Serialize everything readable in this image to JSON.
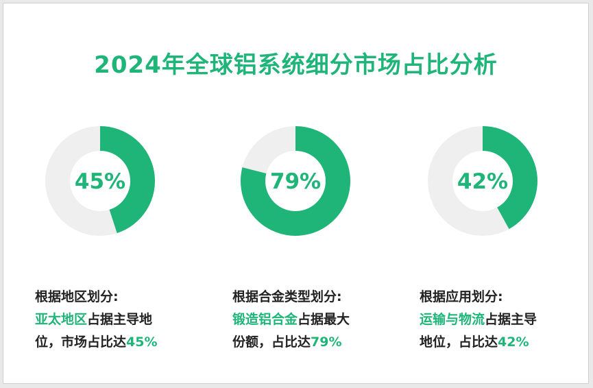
{
  "title": "2024年全球铝系统细分市场占比分析",
  "colors": {
    "accent": "#1fb578",
    "track": "#efefef",
    "text": "#222222"
  },
  "chart_data": [
    {
      "type": "pie",
      "donut": true,
      "values": [
        45,
        55
      ],
      "center_label": "45%",
      "caption": {
        "heading": "根据地区划分:",
        "highlight": "亚太地区",
        "middle": "占据主导地",
        "line3": "位，市场占比达",
        "value": "45%"
      }
    },
    {
      "type": "pie",
      "donut": true,
      "values": [
        79,
        21
      ],
      "center_label": "79%",
      "caption": {
        "heading": "根据合金类型划分:",
        "highlight": "锻造铝合金",
        "middle": "占据最大",
        "line3": "份额，占比达",
        "value": "79%"
      }
    },
    {
      "type": "pie",
      "donut": true,
      "values": [
        42,
        58
      ],
      "center_label": "42%",
      "caption": {
        "heading": "根据应用划分:",
        "highlight": "运输与物流",
        "middle": "占据主导",
        "line3": "地位，占比达",
        "value": "42%"
      }
    }
  ]
}
